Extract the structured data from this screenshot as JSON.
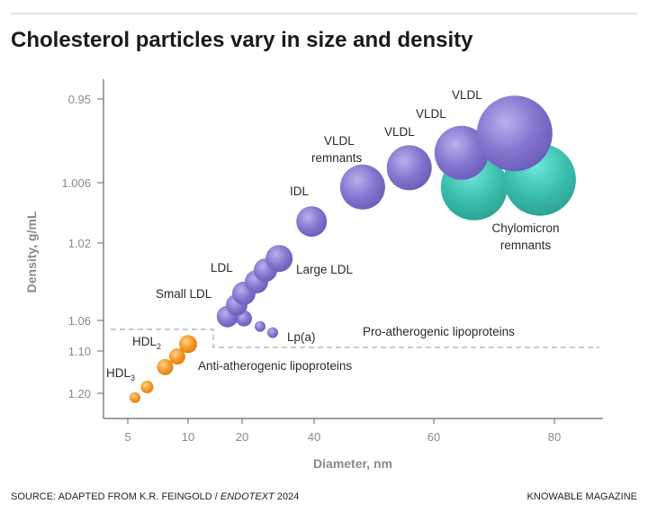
{
  "chart_data": {
    "type": "scatter",
    "title": "Cholesterol particles vary in size and density",
    "xlabel": "Diameter, nm",
    "ylabel": "Density, g/mL",
    "x_ticks": [
      5,
      10,
      20,
      40,
      60,
      80
    ],
    "y_ticks": [
      0.95,
      1.006,
      1.02,
      1.06,
      1.1,
      1.2
    ],
    "x_tick_labels": [
      "5",
      "10",
      "20",
      "40",
      "60",
      "80"
    ],
    "y_tick_labels": [
      "0.95",
      "1.006",
      "1.02",
      "1.06",
      "1.10",
      "1.20"
    ],
    "y_inverted": true,
    "grid": false,
    "colors": {
      "hdl": "#f39a2b",
      "apob": "#8577cf",
      "chylomicron": "#3bbfae"
    },
    "series": [
      {
        "group": "chylomicron",
        "points": [
          {
            "x": 66.7,
            "y": 1.007,
            "size": 37
          },
          {
            "x": 77.6,
            "y": 1.004,
            "size": 40
          }
        ]
      },
      {
        "group": "hdl",
        "points": [
          {
            "x": 5.6,
            "y": 1.21,
            "size": 6
          },
          {
            "x": 6.6,
            "y": 1.185,
            "size": 7
          },
          {
            "x": 8.1,
            "y": 1.138,
            "size": 9
          },
          {
            "x": 9.1,
            "y": 1.113,
            "size": 9
          },
          {
            "x": 10.0,
            "y": 1.091,
            "size": 10
          }
        ]
      },
      {
        "group": "apob",
        "points": [
          {
            "x": 28.5,
            "y": 1.076,
            "size": 6
          },
          {
            "x": 25.0,
            "y": 1.068,
            "size": 6
          },
          {
            "x": 20.5,
            "y": 1.059,
            "size": 9
          },
          {
            "x": 17.3,
            "y": 1.058,
            "size": 12
          },
          {
            "x": 19.0,
            "y": 1.052,
            "size": 12
          },
          {
            "x": 20.5,
            "y": 1.046,
            "size": 13
          },
          {
            "x": 24.0,
            "y": 1.04,
            "size": 13
          },
          {
            "x": 26.5,
            "y": 1.034,
            "size": 13
          },
          {
            "x": 30.3,
            "y": 1.028,
            "size": 15
          },
          {
            "x": 39.3,
            "y": 1.015,
            "size": 17
          },
          {
            "x": 48.1,
            "y": 1.007,
            "size": 25
          },
          {
            "x": 55.9,
            "y": 0.996,
            "size": 25
          },
          {
            "x": 64.6,
            "y": 0.986,
            "size": 30
          },
          {
            "x": 73.4,
            "y": 0.973,
            "size": 42
          }
        ]
      }
    ],
    "annotations": {
      "vldl_a": "VLDL",
      "vldl_b": "VLDL",
      "vldl_c": "VLDL",
      "vldl_remnants_1": "VLDL",
      "vldl_remnants_2": "remnants",
      "idl": "IDL",
      "chylo_1": "Chylomicron",
      "chylo_2": "remnants",
      "ldl": "LDL",
      "large_ldl": "Large LDL",
      "small_ldl": "Small LDL",
      "lpa": "Lp(a)",
      "hdl2": "HDL",
      "hdl2_sub": "2",
      "hdl3": "HDL",
      "hdl3_sub": "3",
      "pro": "Pro-atherogenic lipoproteins",
      "anti": "Anti-atherogenic lipoproteins"
    }
  },
  "footer": {
    "source_prefix": "SOURCE: ADAPTED FROM K.R. FEINGOLD / ",
    "source_italic": "ENDOTEXT",
    "source_suffix": " 2024",
    "credit": "KNOWABLE MAGAZINE"
  }
}
